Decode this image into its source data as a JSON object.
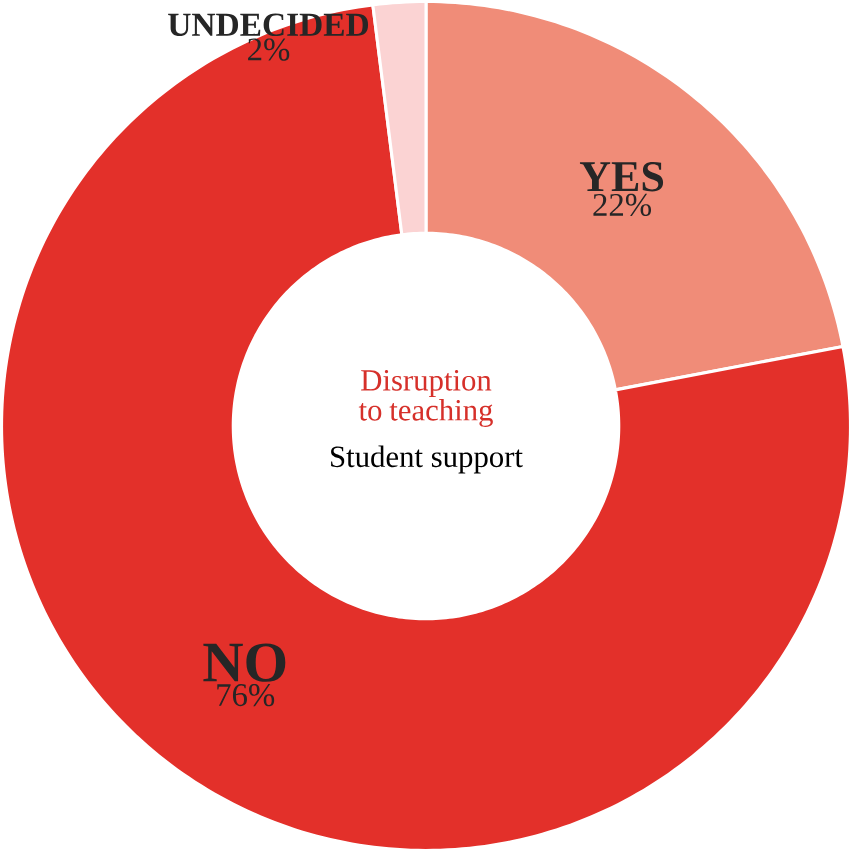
{
  "chart_data": {
    "type": "donut",
    "title": "Disruption to teaching",
    "subtitle": "Student support",
    "categories": [
      "YES",
      "NO",
      "UNDECIDED"
    ],
    "values": [
      22,
      76,
      2
    ],
    "colors": [
      "#f08c78",
      "#e3302a",
      "#fbd3d3"
    ],
    "value_labels": [
      "22%",
      "76%",
      "2%"
    ]
  }
}
